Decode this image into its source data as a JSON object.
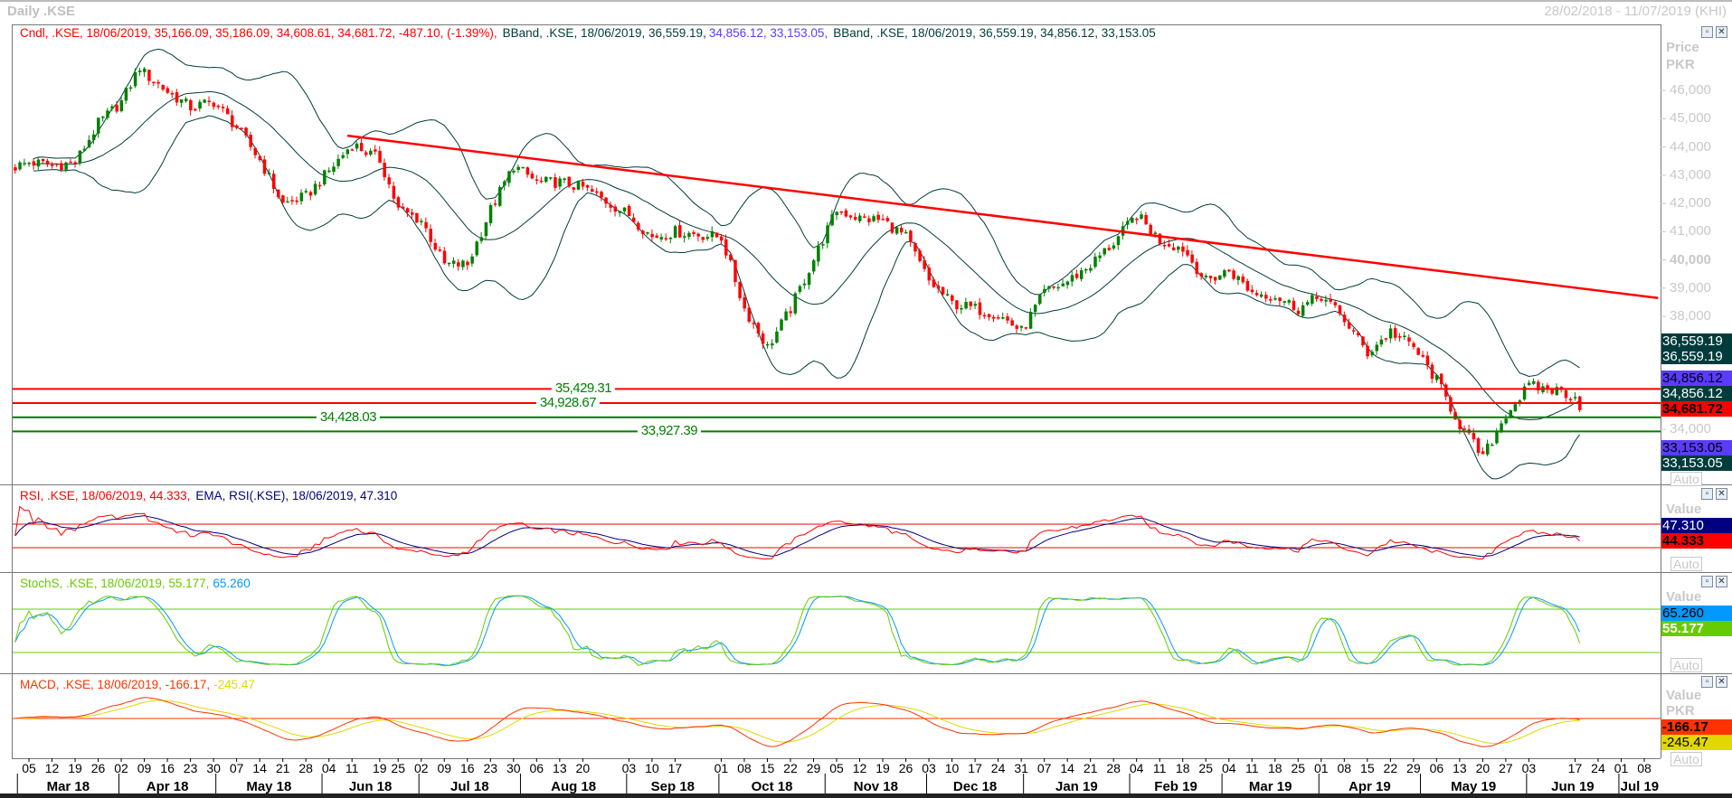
{
  "window": {
    "title": "Daily .KSE",
    "date_range": "28/02/2018 - 11/07/2019 (KHI)"
  },
  "panes": {
    "price": {
      "legend": [
        {
          "text": "Cndl, .KSE, 18/06/2019, 35,166.09, 35,186.09, 34,608.61, 34,681.72, -487.10, (-1.39%),",
          "color": "#ff0000"
        },
        {
          "text": "BBand, .KSE, 18/06/2019, 36,559.19,",
          "color": "#003c3c"
        },
        {
          "text": "34,856.12, 33,153.05,",
          "color": "#5a3cff"
        },
        {
          "text": "BBand, .KSE, 18/06/2019, 36,559.19, 34,856.12, 33,153.05",
          "color": "#003c3c"
        }
      ],
      "axis_title": [
        "Price",
        "PKR"
      ],
      "ticks": [
        "46,000",
        "45,000",
        "44,000",
        "43,000",
        "42,000",
        "41,000",
        "40,000",
        "39,000",
        "38,000",
        "34,000"
      ],
      "badges": [
        {
          "text": "36,559.19",
          "bg": "#003c3c",
          "fg": "#ffffff"
        },
        {
          "text": "36,559.19",
          "bg": "#003c3c",
          "fg": "#ffffff"
        },
        {
          "text": "34,856.12",
          "bg": "#5a3cff",
          "fg": "#000000"
        },
        {
          "text": "34,856.12",
          "bg": "#003c3c",
          "fg": "#ffffff"
        },
        {
          "text": "34,681.72",
          "bg": "#ff0000",
          "fg": "#000000"
        },
        {
          "text": "33,153.05",
          "bg": "#5a3cff",
          "fg": "#000000"
        },
        {
          "text": "33,153.05",
          "bg": "#003c3c",
          "fg": "#ffffff"
        }
      ],
      "auto": "Auto"
    },
    "rsi": {
      "legend": [
        {
          "text": "RSI, .KSE, 18/06/2019, 44.333,",
          "color": "#ff0000"
        },
        {
          "text": "EMA, RSI(.KSE), 18/06/2019, 47.310",
          "color": "#000080"
        }
      ],
      "axis_title": "Value",
      "badges": [
        {
          "text": "47.310",
          "bg": "#000080",
          "fg": "#ffffff"
        },
        {
          "text": "44.333",
          "bg": "#ff0000",
          "fg": "#000000"
        }
      ],
      "auto": "Auto"
    },
    "stoch": {
      "legend": [
        {
          "text": "StochS, .KSE, 18/06/2019, 55.177,",
          "color": "#66cc00"
        },
        {
          "text": "65.260",
          "color": "#0099ff"
        }
      ],
      "axis_title": "Value",
      "badges": [
        {
          "text": "65.260",
          "bg": "#0099ff",
          "fg": "#000000"
        },
        {
          "text": "55.177",
          "bg": "#66cc00",
          "fg": "#ffffff"
        }
      ],
      "auto": "Auto"
    },
    "macd": {
      "legend": [
        {
          "text": "MACD, .KSE, 18/06/2019, -166.17,",
          "color": "#ff3300"
        },
        {
          "text": "-245.47",
          "color": "#e0d800"
        }
      ],
      "axis_title": [
        "Value",
        "PKR"
      ],
      "badges": [
        {
          "text": "-166.17",
          "bg": "#ff3300",
          "fg": "#000000"
        },
        {
          "text": "-245.47",
          "bg": "#e0d800",
          "fg": "#000000"
        }
      ],
      "auto": "Auto"
    }
  },
  "chart_data": {
    "type": "candlestick",
    "symbol": ".KSE",
    "interval": "Daily",
    "colors": {
      "up": "#008000",
      "down": "#ff0000",
      "bbands": "#003c3c",
      "trendline": "#ff0000"
    },
    "price_ylim": [
      32050,
      48340
    ],
    "close_estimates": [
      [
        "2018-02-28",
        43300
      ],
      [
        "2018-03-05",
        43460
      ],
      [
        "2018-03-12",
        43350
      ],
      [
        "2018-03-19",
        43450
      ],
      [
        "2018-03-26",
        44830
      ],
      [
        "2018-04-02",
        45600
      ],
      [
        "2018-04-06",
        46850
      ],
      [
        "2018-04-09",
        46600
      ],
      [
        "2018-04-16",
        45960
      ],
      [
        "2018-04-23",
        45400
      ],
      [
        "2018-04-30",
        45600
      ],
      [
        "2018-05-07",
        44700
      ],
      [
        "2018-05-14",
        43540
      ],
      [
        "2018-05-21",
        41980
      ],
      [
        "2018-05-28",
        42250
      ],
      [
        "2018-06-04",
        43150
      ],
      [
        "2018-06-11",
        44120
      ],
      [
        "2018-06-19",
        43540
      ],
      [
        "2018-06-25",
        41780
      ],
      [
        "2018-07-02",
        41400
      ],
      [
        "2018-07-09",
        39830
      ],
      [
        "2018-07-16",
        39830
      ],
      [
        "2018-07-23",
        41780
      ],
      [
        "2018-07-30",
        43340
      ],
      [
        "2018-08-06",
        42750
      ],
      [
        "2018-08-13",
        42750
      ],
      [
        "2018-08-20",
        42560
      ],
      [
        "2018-09-03",
        41590
      ],
      [
        "2018-09-10",
        40800
      ],
      [
        "2018-09-17",
        41000
      ],
      [
        "2018-10-01",
        40800
      ],
      [
        "2018-10-08",
        38270
      ],
      [
        "2018-10-15",
        36900
      ],
      [
        "2018-10-22",
        38270
      ],
      [
        "2018-10-29",
        40020
      ],
      [
        "2018-11-05",
        41780
      ],
      [
        "2018-11-12",
        41470
      ],
      [
        "2018-11-19",
        41400
      ],
      [
        "2018-11-26",
        40800
      ],
      [
        "2018-12-03",
        39240
      ],
      [
        "2018-12-10",
        38460
      ],
      [
        "2018-12-17",
        38270
      ],
      [
        "2018-12-24",
        38070
      ],
      [
        "2018-12-31",
        37480
      ],
      [
        "2019-01-07",
        38850
      ],
      [
        "2019-01-14",
        39240
      ],
      [
        "2019-01-21",
        39830
      ],
      [
        "2019-01-28",
        40610
      ],
      [
        "2019-02-04",
        41590
      ],
      [
        "2019-02-11",
        40690
      ],
      [
        "2019-02-18",
        40410
      ],
      [
        "2019-02-25",
        39240
      ],
      [
        "2019-03-04",
        39630
      ],
      [
        "2019-03-11",
        38850
      ],
      [
        "2019-03-18",
        38730
      ],
      [
        "2019-03-25",
        38270
      ],
      [
        "2019-04-01",
        38730
      ],
      [
        "2019-04-08",
        37880
      ],
      [
        "2019-04-15",
        36700
      ],
      [
        "2019-04-22",
        37480
      ],
      [
        "2019-04-29",
        36900
      ],
      [
        "2019-05-06",
        35730
      ],
      [
        "2019-05-13",
        34160
      ],
      [
        "2019-05-20",
        33000
      ],
      [
        "2019-05-27",
        34550
      ],
      [
        "2019-06-03",
        35530
      ],
      [
        "2019-06-12",
        35340
      ],
      [
        "2019-06-17",
        35166.09
      ]
    ],
    "last_candle": {
      "date": "2019-06-18",
      "open": 35166.09,
      "high": 35186.09,
      "low": 34608.61,
      "close": 34681.72,
      "change": -487.1,
      "change_pct": -1.39
    },
    "bollinger": {
      "upper": 36559.19,
      "middle": 34856.12,
      "lower": 33153.05
    },
    "h_levels": [
      {
        "value": 35429.31,
        "label": "35,429.31",
        "color": "#ff0000"
      },
      {
        "value": 34928.67,
        "label": "34,928.67",
        "color": "#ff0000"
      },
      {
        "value": 34428.03,
        "label": "34,428.03",
        "color": "#008000"
      },
      {
        "value": 33927.39,
        "label": "33,927.39",
        "color": "#008000"
      }
    ],
    "trendline": [
      [
        "2018-06-08",
        44400
      ],
      [
        "2019-07-11",
        38650
      ]
    ],
    "rsi": {
      "value": 44.333,
      "ema": 47.31,
      "levels": [
        70,
        30
      ],
      "colors": {
        "rsi": "#ff0000",
        "ema": "#000080"
      }
    },
    "stoch": {
      "k": 55.177,
      "d": 65.26,
      "levels": [
        80,
        20
      ],
      "colors": {
        "k": "#66cc00",
        "d": "#0099ff"
      }
    },
    "macd": {
      "macd": -166.17,
      "signal": -245.47,
      "colors": {
        "macd": "#ff3300",
        "signal": "#e0d800"
      }
    },
    "x_ticks": [
      {
        "date": "2018-03-05",
        "label": "05"
      },
      {
        "date": "2018-03-12",
        "label": "12"
      },
      {
        "date": "2018-03-19",
        "label": "19"
      },
      {
        "date": "2018-03-26",
        "label": "26"
      },
      {
        "date": "2018-04-02",
        "label": "02"
      },
      {
        "date": "2018-04-09",
        "label": "09"
      },
      {
        "date": "2018-04-16",
        "label": "16"
      },
      {
        "date": "2018-04-23",
        "label": "23"
      },
      {
        "date": "2018-04-30",
        "label": "30"
      },
      {
        "date": "2018-05-07",
        "label": "07"
      },
      {
        "date": "2018-05-14",
        "label": "14"
      },
      {
        "date": "2018-05-21",
        "label": "21"
      },
      {
        "date": "2018-05-28",
        "label": "28"
      },
      {
        "date": "2018-06-04",
        "label": "04"
      },
      {
        "date": "2018-06-11",
        "label": "11"
      },
      {
        "date": "2018-06-19",
        "label": "19"
      },
      {
        "date": "2018-06-25",
        "label": "25"
      },
      {
        "date": "2018-07-02",
        "label": "02"
      },
      {
        "date": "2018-07-09",
        "label": "09"
      },
      {
        "date": "2018-07-16",
        "label": "16"
      },
      {
        "date": "2018-07-23",
        "label": "23"
      },
      {
        "date": "2018-07-30",
        "label": "30"
      },
      {
        "date": "2018-08-06",
        "label": "06"
      },
      {
        "date": "2018-08-13",
        "label": "13"
      },
      {
        "date": "2018-08-20",
        "label": "20"
      },
      {
        "date": "2018-09-03",
        "label": "03"
      },
      {
        "date": "2018-09-10",
        "label": "10"
      },
      {
        "date": "2018-09-17",
        "label": "17"
      },
      {
        "date": "2018-10-01",
        "label": "01"
      },
      {
        "date": "2018-10-08",
        "label": "08"
      },
      {
        "date": "2018-10-15",
        "label": "15"
      },
      {
        "date": "2018-10-22",
        "label": "22"
      },
      {
        "date": "2018-10-29",
        "label": "29"
      },
      {
        "date": "2018-11-05",
        "label": "05"
      },
      {
        "date": "2018-11-12",
        "label": "12"
      },
      {
        "date": "2018-11-19",
        "label": "19"
      },
      {
        "date": "2018-11-26",
        "label": "26"
      },
      {
        "date": "2018-12-03",
        "label": "03"
      },
      {
        "date": "2018-12-10",
        "label": "10"
      },
      {
        "date": "2018-12-17",
        "label": "17"
      },
      {
        "date": "2018-12-24",
        "label": "24"
      },
      {
        "date": "2018-12-31",
        "label": "31"
      },
      {
        "date": "2019-01-07",
        "label": "07"
      },
      {
        "date": "2019-01-14",
        "label": "14"
      },
      {
        "date": "2019-01-21",
        "label": "21"
      },
      {
        "date": "2019-01-28",
        "label": "28"
      },
      {
        "date": "2019-02-04",
        "label": "04"
      },
      {
        "date": "2019-02-11",
        "label": "11"
      },
      {
        "date": "2019-02-18",
        "label": "18"
      },
      {
        "date": "2019-02-25",
        "label": "25"
      },
      {
        "date": "2019-03-04",
        "label": "04"
      },
      {
        "date": "2019-03-11",
        "label": "11"
      },
      {
        "date": "2019-03-18",
        "label": "18"
      },
      {
        "date": "2019-03-25",
        "label": "25"
      },
      {
        "date": "2019-04-01",
        "label": "01"
      },
      {
        "date": "2019-04-08",
        "label": "08"
      },
      {
        "date": "2019-04-15",
        "label": "15"
      },
      {
        "date": "2019-04-22",
        "label": "22"
      },
      {
        "date": "2019-04-29",
        "label": "29"
      },
      {
        "date": "2019-05-06",
        "label": "06"
      },
      {
        "date": "2019-05-13",
        "label": "13"
      },
      {
        "date": "2019-05-20",
        "label": "20"
      },
      {
        "date": "2019-05-27",
        "label": "27"
      },
      {
        "date": "2019-06-03",
        "label": "03"
      },
      {
        "date": "2019-06-17",
        "label": "17"
      },
      {
        "date": "2019-06-24",
        "label": "24"
      },
      {
        "date": "2019-07-01",
        "label": "01"
      },
      {
        "date": "2019-07-08",
        "label": "08"
      }
    ],
    "month_labels": [
      {
        "start": "2018-03-01",
        "end": "2018-04-01",
        "label": "Mar 18"
      },
      {
        "start": "2018-04-01",
        "end": "2018-05-01",
        "label": "Apr 18"
      },
      {
        "start": "2018-05-01",
        "end": "2018-06-01",
        "label": "May 18"
      },
      {
        "start": "2018-06-01",
        "end": "2018-07-01",
        "label": "Jun 18"
      },
      {
        "start": "2018-07-01",
        "end": "2018-08-01",
        "label": "Jul 18"
      },
      {
        "start": "2018-08-01",
        "end": "2018-09-01",
        "label": "Aug 18"
      },
      {
        "start": "2018-09-01",
        "end": "2018-10-01",
        "label": "Sep 18"
      },
      {
        "start": "2018-10-01",
        "end": "2018-11-01",
        "label": "Oct 18"
      },
      {
        "start": "2018-11-01",
        "end": "2018-12-01",
        "label": "Nov 18"
      },
      {
        "start": "2018-12-01",
        "end": "2019-01-01",
        "label": "Dec 18"
      },
      {
        "start": "2019-01-01",
        "end": "2019-02-01",
        "label": "Jan 19"
      },
      {
        "start": "2019-02-01",
        "end": "2019-03-01",
        "label": "Feb 19"
      },
      {
        "start": "2019-03-01",
        "end": "2019-04-01",
        "label": "Mar 19"
      },
      {
        "start": "2019-04-01",
        "end": "2019-05-01",
        "label": "Apr 19"
      },
      {
        "start": "2019-05-01",
        "end": "2019-06-01",
        "label": "May 19"
      },
      {
        "start": "2019-06-01",
        "end": "2019-07-01",
        "label": "Jun 19"
      },
      {
        "start": "2019-07-01",
        "end": "2019-07-12",
        "label": "Jul 19"
      }
    ]
  }
}
